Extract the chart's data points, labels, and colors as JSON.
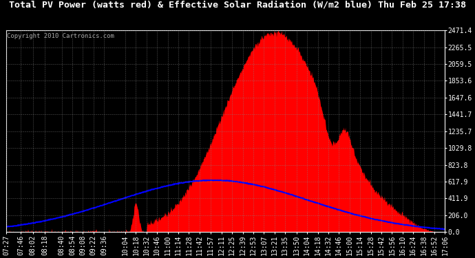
{
  "title": "Total PV Power (watts red) & Effective Solar Radiation (W/m2 blue) Thu Feb 25 17:38",
  "copyright": "Copyright 2010 Cartronics.com",
  "background_color": "#000000",
  "plot_bg_color": "#000000",
  "title_color": "#ffffff",
  "grid_color": "#888888",
  "ytick_labels": [
    "0.0",
    "206.0",
    "411.9",
    "617.9",
    "823.8",
    "1029.8",
    "1235.7",
    "1441.7",
    "1647.6",
    "1853.6",
    "2059.5",
    "2265.5",
    "2471.4"
  ],
  "ytick_values": [
    0.0,
    206.0,
    411.9,
    617.9,
    823.8,
    1029.8,
    1235.7,
    1441.7,
    1647.6,
    1853.6,
    2059.5,
    2265.5,
    2471.4
  ],
  "ymax": 2471.4,
  "ymin": 0.0,
  "xtick_labels": [
    "07:27",
    "07:46",
    "08:02",
    "08:18",
    "08:40",
    "08:54",
    "09:08",
    "09:22",
    "09:36",
    "10:04",
    "10:18",
    "10:32",
    "10:46",
    "11:00",
    "11:14",
    "11:28",
    "11:42",
    "11:57",
    "12:11",
    "12:25",
    "12:39",
    "12:53",
    "13:07",
    "13:21",
    "13:35",
    "13:50",
    "14:04",
    "14:18",
    "14:32",
    "14:46",
    "15:00",
    "15:14",
    "15:28",
    "15:42",
    "15:56",
    "16:10",
    "16:24",
    "16:38",
    "16:52",
    "17:06"
  ],
  "pv_color": "#ff0000",
  "solar_color": "#0000ff",
  "figsize": [
    6.9,
    3.75
  ],
  "dpi": 100,
  "title_fontsize": 9.5,
  "tick_fontsize": 7,
  "copyright_fontsize": 6.5
}
